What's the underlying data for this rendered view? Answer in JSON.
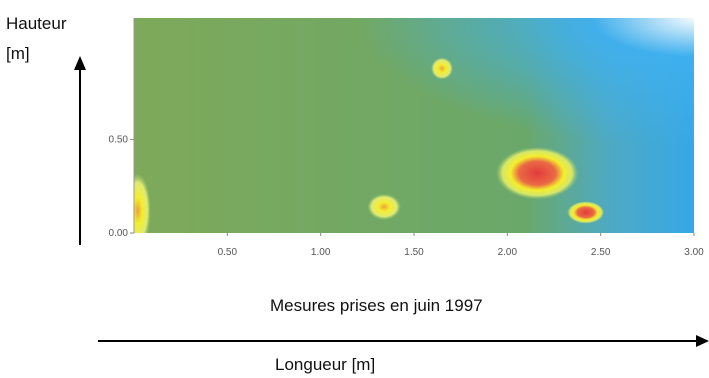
{
  "labels": {
    "y_axis_line1": "Hauteur",
    "y_axis_line2": "[m]",
    "caption": "Mesures prises en juin 1997",
    "x_axis": "Longueur [m]"
  },
  "colors": {
    "background_field": "#79a85c",
    "cool": "#3aa7e0",
    "warm": "#f4ee2e",
    "hot": "#e84a4a"
  },
  "chart_data": {
    "type": "heatmap",
    "title": "",
    "xlabel": "Longueur [m]",
    "ylabel": "Hauteur [m]",
    "xlim": [
      0,
      3.0
    ],
    "ylim": [
      0,
      1.0
    ],
    "x_ticks": [
      "0.50",
      "1.00",
      "1.50",
      "2.00",
      "2.50",
      "3.00"
    ],
    "y_ticks": [
      "0.00",
      "0.50"
    ],
    "hotspots": [
      {
        "name": "hot-spot-main",
        "x": 2.16,
        "y": 0.32,
        "rx": 0.22,
        "ry": 0.14,
        "level": "hot"
      },
      {
        "name": "hot-spot-small",
        "x": 2.42,
        "y": 0.11,
        "rx": 0.1,
        "ry": 0.06,
        "level": "hot"
      },
      {
        "name": "warm-spot-center",
        "x": 1.34,
        "y": 0.14,
        "rx": 0.09,
        "ry": 0.07,
        "level": "warm"
      },
      {
        "name": "warm-spot-top",
        "x": 1.65,
        "y": 0.88,
        "rx": 0.06,
        "ry": 0.06,
        "level": "warm"
      },
      {
        "name": "warm-edge-left",
        "x": 0.02,
        "y": 0.12,
        "rx": 0.07,
        "ry": 0.2,
        "level": "warm"
      }
    ]
  }
}
